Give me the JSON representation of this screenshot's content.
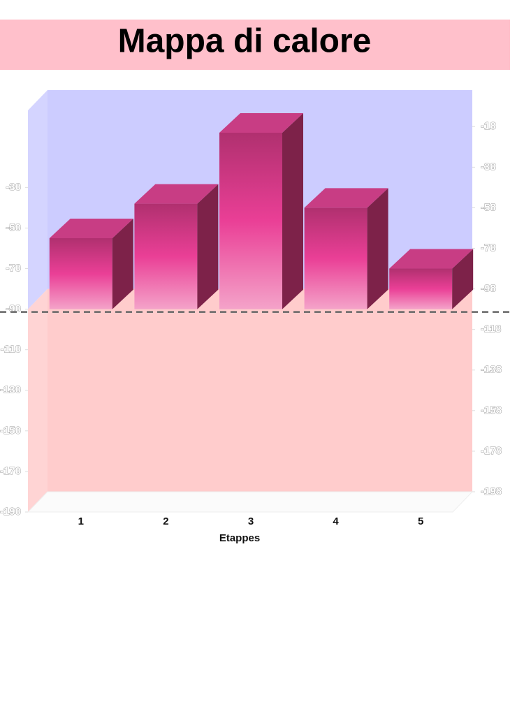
{
  "chart_data": {
    "type": "bar",
    "title": "Mappa di calore",
    "x_label": "Etappes",
    "categories": [
      "1",
      "2",
      "3",
      "4",
      "5"
    ],
    "values": [
      -55,
      -38,
      -3,
      -40,
      -70
    ],
    "color": "#e8409a",
    "baseline": -90,
    "ylim": [
      -190,
      8
    ],
    "yticks": [
      -190,
      -170,
      -150,
      -130,
      -110,
      -90,
      -70,
      -50,
      -30
    ],
    "y2lim": [
      -198,
      0
    ],
    "y2ticks": [
      -198,
      -178,
      -158,
      -138,
      -118,
      -98,
      -78,
      -58,
      -38,
      -18
    ],
    "background_above": "#ccccff",
    "background_below": "#ffcccc"
  }
}
